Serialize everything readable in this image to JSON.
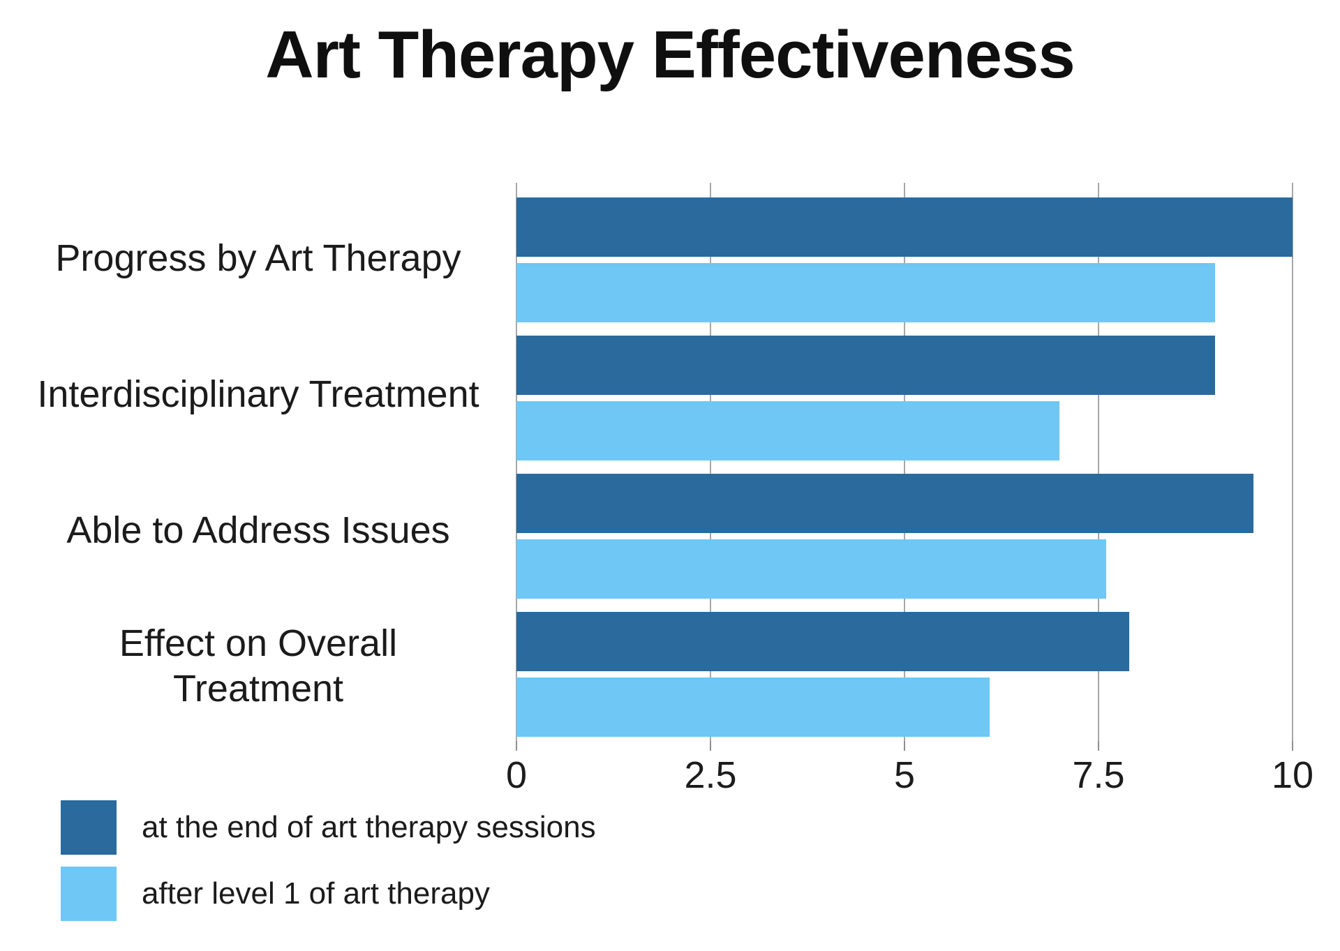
{
  "title": "Art Therapy Effectiveness",
  "chart_data": {
    "type": "bar",
    "orientation": "horizontal",
    "title": "Art Therapy Effectiveness",
    "categories": [
      "Progress by Art Therapy",
      "Interdisciplinary Treatment",
      "Able to Address Issues",
      "Effect on Overall Treatment"
    ],
    "series": [
      {
        "name": "at the end of art therapy sessions",
        "color": "#2A6A9D",
        "values": [
          10,
          9,
          9.5,
          7.9
        ]
      },
      {
        "name": "after level 1 of art therapy",
        "color": "#6EC7F5",
        "values": [
          9,
          7,
          7.6,
          6.1
        ]
      }
    ],
    "xlim": [
      0,
      10
    ],
    "x_ticks": [
      0,
      2.5,
      5,
      7.5,
      10
    ],
    "x_tick_labels": [
      "0",
      "2.5",
      "5",
      "7.5",
      "10"
    ],
    "grid": "vertical-only",
    "gridline_color": "#A7A7A7",
    "legend_position": "bottom-left",
    "background": "#FFFFFF"
  }
}
